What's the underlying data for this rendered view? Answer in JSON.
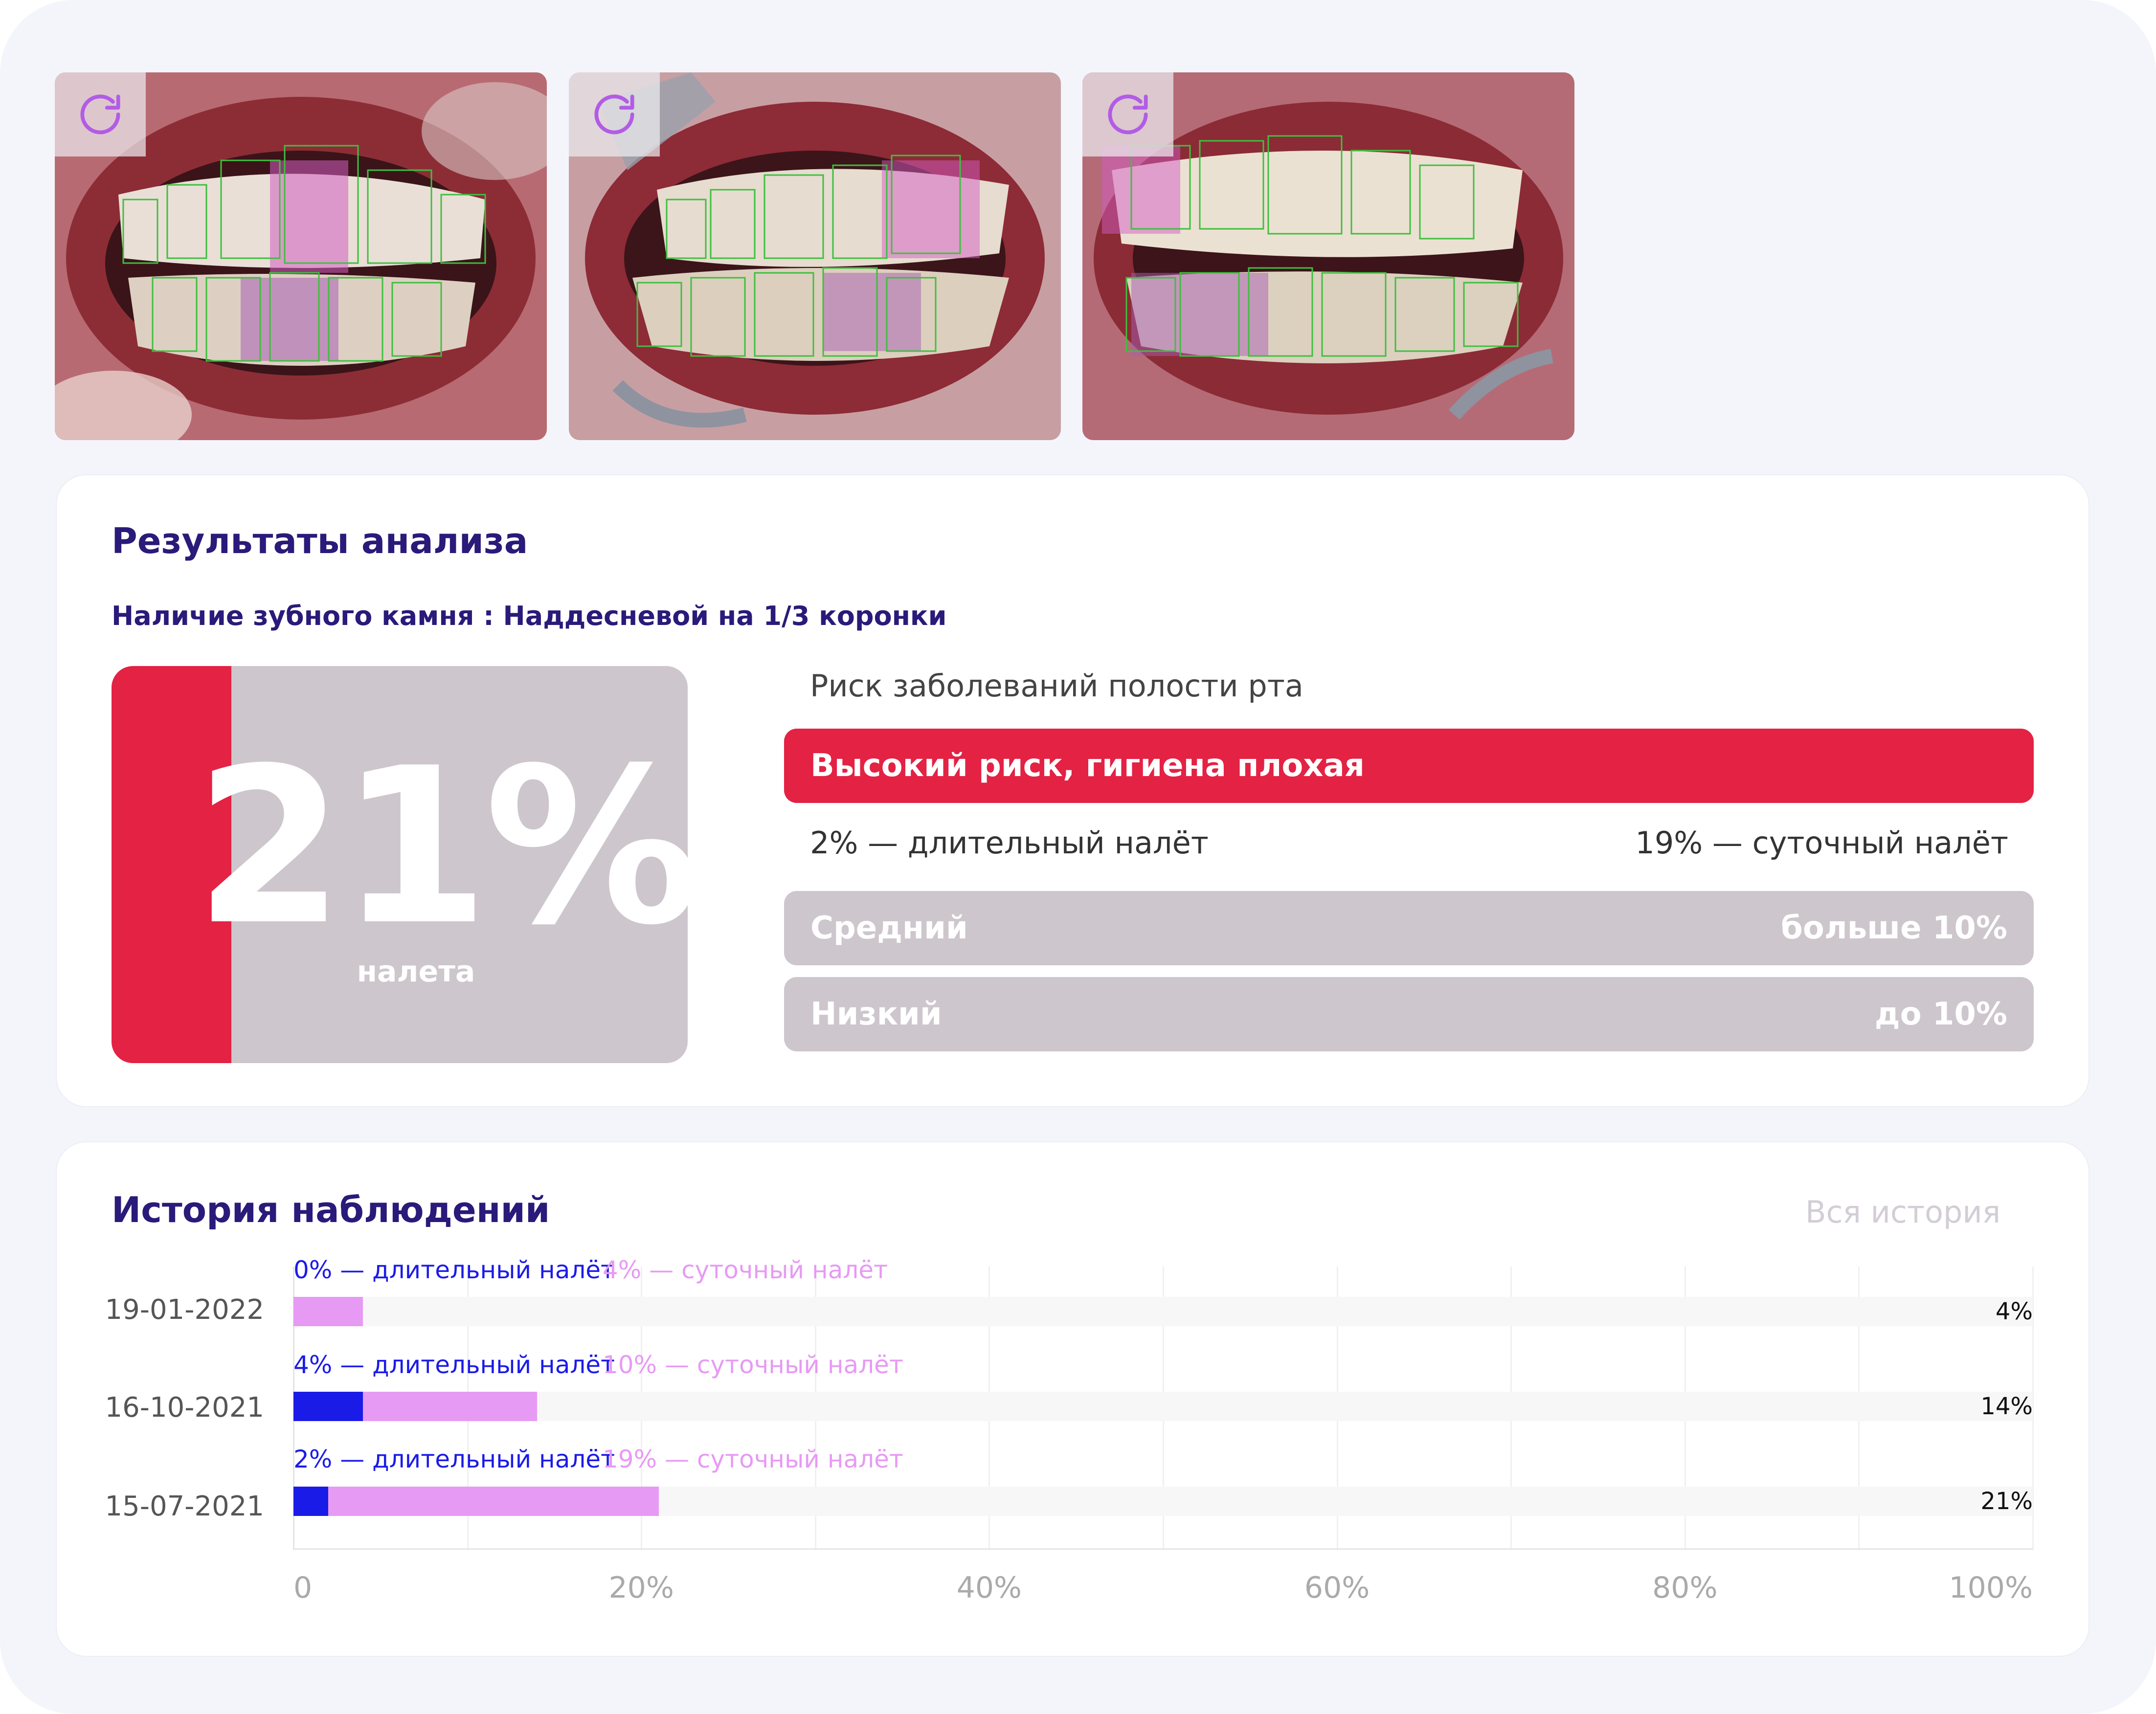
{
  "photos": [
    {
      "rotate_icon": "rotate-clockwise-icon"
    },
    {
      "rotate_icon": "rotate-clockwise-icon"
    },
    {
      "rotate_icon": "rotate-clockwise-icon"
    }
  ],
  "analysis": {
    "title": "Результаты анализа",
    "calculus": "Наличие зубного камня : Наддесневой на 1/3 коронки",
    "plaque_value": "21%",
    "plaque_label": "налета",
    "plaque_fraction": 0.21,
    "risk_title": "Риск заболеваний полости рта",
    "risk_high": "Высокий риск, гигиена плохая",
    "long_plaque": "2% — длительный налёт",
    "daily_plaque": "19% — суточный налёт",
    "risk_medium": "Средний",
    "risk_medium_threshold": "больше 10%",
    "risk_low": "Низкий",
    "risk_low_threshold": "до 10%"
  },
  "history": {
    "title": "История наблюдений",
    "all_history": "Вся история",
    "rows": [
      {
        "date": "19-01-2022",
        "long_label": "0% — длительный налёт",
        "daily_label": "4% — суточный налёт",
        "long": 0,
        "daily": 4,
        "total": "4%"
      },
      {
        "date": "16-10-2021",
        "long_label": "4% — длительный налёт",
        "daily_label": "10% — суточный налёт",
        "long": 4,
        "daily": 10,
        "total": "14%"
      },
      {
        "date": "15-07-2021",
        "long_label": "2% — длительный налёт",
        "daily_label": "19% — суточный налёт",
        "long": 2,
        "daily": 19,
        "total": "21%"
      }
    ],
    "axis": [
      "0",
      "20%",
      "40%",
      "60%",
      "80%",
      "100%"
    ]
  },
  "colors": {
    "accent": "#2a1a7a",
    "high_risk": "#e32244",
    "inactive": "#cdc6cc",
    "long_plaque": "#1b1be8",
    "daily_plaque": "#e79af4"
  }
}
